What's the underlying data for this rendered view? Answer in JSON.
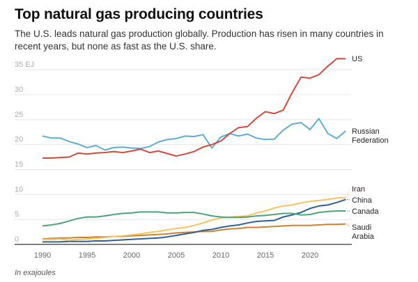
{
  "title": "Top natural gas producing countries",
  "subtitle": "The U.S. leads natural gas production globally. Production has risen in many countries in recent years, but none as fast as the U.S. share.",
  "footnote": "In exajoules",
  "chart_data": {
    "type": "line",
    "title": "Top natural gas producing countries",
    "xlabel": "",
    "ylabel": "EJ",
    "ylim": [
      0,
      35
    ],
    "yticks": [
      0,
      5,
      10,
      15,
      20,
      25,
      30,
      35
    ],
    "ytick_labels": [
      "0",
      "5",
      "10",
      "15",
      "20",
      "25",
      "30",
      "35 EJ"
    ],
    "xticks": [
      1990,
      1995,
      2000,
      2005,
      2010,
      2015,
      2020
    ],
    "xlim": [
      1990,
      2024
    ],
    "grid": true,
    "legend": "direct-labels-right",
    "x": [
      1990,
      1991,
      1992,
      1993,
      1994,
      1995,
      1996,
      1997,
      1998,
      1999,
      2000,
      2001,
      2002,
      2003,
      2004,
      2005,
      2006,
      2007,
      2008,
      2009,
      2010,
      2011,
      2012,
      2013,
      2014,
      2015,
      2016,
      2017,
      2018,
      2019,
      2020,
      2021,
      2022,
      2023,
      2024
    ],
    "series": [
      {
        "name": "US",
        "label": [
          "US"
        ],
        "color": "#d04a3a",
        "values": [
          17.3,
          17.3,
          17.4,
          17.5,
          18.3,
          18.1,
          18.3,
          18.4,
          18.6,
          18.4,
          18.7,
          19.1,
          18.4,
          18.7,
          18.2,
          17.7,
          18.1,
          18.6,
          19.5,
          20.0,
          20.7,
          22.2,
          23.4,
          23.6,
          25.3,
          26.6,
          26.2,
          26.9,
          30.4,
          33.5,
          33.3,
          34.0,
          35.7,
          37.2,
          37.2
        ]
      },
      {
        "name": "Russian Federation",
        "label": [
          "Russian",
          "Federation"
        ],
        "color": "#5aaed3",
        "values": [
          21.7,
          21.3,
          21.3,
          20.6,
          20.1,
          19.4,
          19.8,
          18.9,
          19.4,
          19.5,
          19.3,
          19.2,
          19.6,
          20.5,
          21.0,
          21.2,
          21.7,
          21.6,
          22.0,
          19.3,
          21.5,
          22.2,
          21.7,
          22.1,
          21.3,
          21.0,
          21.1,
          22.9,
          24.1,
          24.4,
          23.0,
          25.2,
          22.2,
          21.2,
          22.7
        ]
      },
      {
        "name": "Iran",
        "label": [
          "Iran"
        ],
        "color": "#f3c25b",
        "values": [
          1.0,
          1.0,
          1.1,
          0.8,
          1.0,
          1.1,
          1.2,
          1.4,
          1.6,
          1.7,
          1.9,
          2.1,
          2.4,
          2.6,
          2.9,
          3.2,
          3.4,
          3.8,
          4.3,
          4.9,
          5.3,
          5.5,
          5.6,
          5.7,
          6.3,
          6.7,
          7.3,
          7.7,
          7.9,
          8.3,
          8.6,
          8.8,
          9.0,
          9.3,
          9.4
        ]
      },
      {
        "name": "China",
        "label": [
          "China"
        ],
        "color": "#2e5f96",
        "values": [
          0.5,
          0.5,
          0.5,
          0.6,
          0.6,
          0.6,
          0.7,
          0.7,
          0.8,
          0.9,
          1.0,
          1.1,
          1.2,
          1.3,
          1.5,
          1.8,
          2.1,
          2.4,
          2.8,
          3.0,
          3.4,
          3.7,
          3.9,
          4.3,
          4.6,
          4.7,
          4.8,
          5.5,
          5.9,
          6.4,
          7.2,
          7.7,
          7.9,
          8.4,
          9.0
        ]
      },
      {
        "name": "Canada",
        "label": [
          "Canada"
        ],
        "color": "#4aa37a",
        "values": [
          3.7,
          3.9,
          4.2,
          4.7,
          5.2,
          5.5,
          5.5,
          5.7,
          6.0,
          6.2,
          6.3,
          6.5,
          6.5,
          6.5,
          6.3,
          6.3,
          6.4,
          6.4,
          6.1,
          5.7,
          5.5,
          5.4,
          5.4,
          5.5,
          5.7,
          5.8,
          6.0,
          6.2,
          6.2,
          5.9,
          6.0,
          6.4,
          6.6,
          6.7,
          6.7
        ]
      },
      {
        "name": "Saudi Arabia",
        "label": [
          "Saudi",
          "Arabia"
        ],
        "color": "#c9822f",
        "values": [
          1.1,
          1.2,
          1.3,
          1.3,
          1.4,
          1.4,
          1.5,
          1.5,
          1.6,
          1.6,
          1.7,
          1.8,
          1.9,
          2.0,
          2.1,
          2.3,
          2.4,
          2.5,
          2.6,
          2.6,
          2.9,
          3.1,
          3.2,
          3.4,
          3.4,
          3.5,
          3.6,
          3.7,
          3.8,
          3.8,
          3.8,
          3.9,
          4.0,
          4.0,
          4.1
        ]
      }
    ]
  }
}
